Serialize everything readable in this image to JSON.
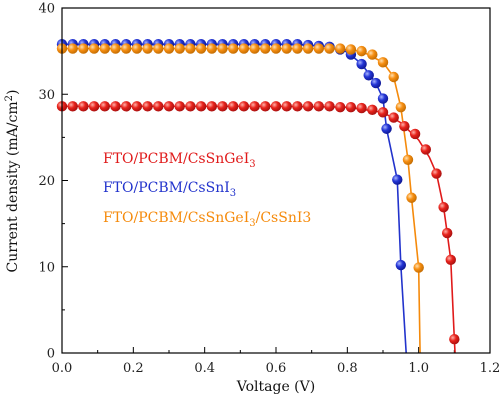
{
  "chart_data": {
    "type": "line",
    "xlabel": "Voltage (V)",
    "ylabel_main": "Current density (mA/cm",
    "ylabel_sup": "2",
    "ylabel_tail": ")",
    "xlim": [
      0.0,
      1.2
    ],
    "ylim": [
      0,
      40
    ],
    "xticks": [
      "0.0",
      "0.2",
      "0.4",
      "0.6",
      "0.8",
      "1.0",
      "1.2"
    ],
    "yticks": [
      "0",
      "10",
      "20",
      "30",
      "40"
    ],
    "grid": false,
    "legend_position": "center-left",
    "series": [
      {
        "name_main": "FTO/PCBM/CsSnGeI",
        "name_sub": "3",
        "name_tail": "",
        "color": "#e01a1a",
        "points": [
          [
            0.0,
            28.6
          ],
          [
            0.03,
            28.6
          ],
          [
            0.06,
            28.6
          ],
          [
            0.09,
            28.6
          ],
          [
            0.12,
            28.6
          ],
          [
            0.15,
            28.6
          ],
          [
            0.18,
            28.6
          ],
          [
            0.21,
            28.6
          ],
          [
            0.24,
            28.6
          ],
          [
            0.27,
            28.6
          ],
          [
            0.3,
            28.6
          ],
          [
            0.33,
            28.6
          ],
          [
            0.36,
            28.6
          ],
          [
            0.39,
            28.6
          ],
          [
            0.42,
            28.6
          ],
          [
            0.45,
            28.6
          ],
          [
            0.48,
            28.6
          ],
          [
            0.51,
            28.6
          ],
          [
            0.54,
            28.6
          ],
          [
            0.57,
            28.6
          ],
          [
            0.6,
            28.6
          ],
          [
            0.63,
            28.6
          ],
          [
            0.66,
            28.6
          ],
          [
            0.69,
            28.6
          ],
          [
            0.72,
            28.6
          ],
          [
            0.75,
            28.6
          ],
          [
            0.78,
            28.5
          ],
          [
            0.81,
            28.5
          ],
          [
            0.84,
            28.4
          ],
          [
            0.87,
            28.2
          ],
          [
            0.9,
            27.9
          ],
          [
            0.93,
            27.3
          ],
          [
            0.96,
            26.3
          ],
          [
            0.99,
            25.4
          ],
          [
            1.02,
            23.6
          ],
          [
            1.05,
            20.8
          ],
          [
            1.07,
            16.9
          ],
          [
            1.08,
            13.9
          ],
          [
            1.09,
            10.8
          ],
          [
            1.1,
            1.6
          ]
        ],
        "curve": [
          [
            0.0,
            28.6
          ],
          [
            0.6,
            28.6
          ],
          [
            0.8,
            28.5
          ],
          [
            0.9,
            27.9
          ],
          [
            0.95,
            26.7
          ],
          [
            1.0,
            24.7
          ],
          [
            1.03,
            22.7
          ],
          [
            1.05,
            20.8
          ],
          [
            1.07,
            16.9
          ],
          [
            1.08,
            13.9
          ],
          [
            1.09,
            10.8
          ],
          [
            1.1,
            1.6
          ],
          [
            1.102,
            0
          ]
        ]
      },
      {
        "name_main": "FTO/PCBM/CsSnI",
        "name_sub": "3",
        "name_tail": "",
        "color": "#2233cc",
        "points": [
          [
            0.0,
            35.8
          ],
          [
            0.03,
            35.8
          ],
          [
            0.06,
            35.8
          ],
          [
            0.09,
            35.8
          ],
          [
            0.12,
            35.8
          ],
          [
            0.15,
            35.8
          ],
          [
            0.18,
            35.8
          ],
          [
            0.21,
            35.8
          ],
          [
            0.24,
            35.8
          ],
          [
            0.27,
            35.8
          ],
          [
            0.3,
            35.8
          ],
          [
            0.33,
            35.8
          ],
          [
            0.36,
            35.8
          ],
          [
            0.39,
            35.8
          ],
          [
            0.42,
            35.8
          ],
          [
            0.45,
            35.8
          ],
          [
            0.48,
            35.8
          ],
          [
            0.51,
            35.8
          ],
          [
            0.54,
            35.8
          ],
          [
            0.57,
            35.8
          ],
          [
            0.6,
            35.8
          ],
          [
            0.63,
            35.8
          ],
          [
            0.66,
            35.8
          ],
          [
            0.69,
            35.7
          ],
          [
            0.72,
            35.6
          ],
          [
            0.75,
            35.5
          ],
          [
            0.78,
            35.2
          ],
          [
            0.81,
            34.6
          ],
          [
            0.84,
            33.5
          ],
          [
            0.86,
            32.2
          ],
          [
            0.88,
            31.3
          ],
          [
            0.9,
            29.5
          ],
          [
            0.91,
            26.0
          ],
          [
            0.94,
            20.1
          ],
          [
            0.95,
            10.2
          ]
        ],
        "curve": [
          [
            0.0,
            35.8
          ],
          [
            0.65,
            35.8
          ],
          [
            0.75,
            35.5
          ],
          [
            0.8,
            34.9
          ],
          [
            0.84,
            33.5
          ],
          [
            0.88,
            31.3
          ],
          [
            0.9,
            29.5
          ],
          [
            0.91,
            26.0
          ],
          [
            0.94,
            20.1
          ],
          [
            0.95,
            10.2
          ],
          [
            0.965,
            0
          ]
        ]
      },
      {
        "name_main": "FTO/PCBM/CsSnGeI",
        "name_sub": "3",
        "name_tail": "/CsSnI3",
        "color": "#f58a0b",
        "points": [
          [
            0.0,
            35.3
          ],
          [
            0.03,
            35.3
          ],
          [
            0.06,
            35.3
          ],
          [
            0.09,
            35.3
          ],
          [
            0.12,
            35.3
          ],
          [
            0.15,
            35.3
          ],
          [
            0.18,
            35.3
          ],
          [
            0.21,
            35.3
          ],
          [
            0.24,
            35.3
          ],
          [
            0.27,
            35.3
          ],
          [
            0.3,
            35.3
          ],
          [
            0.33,
            35.3
          ],
          [
            0.36,
            35.3
          ],
          [
            0.39,
            35.3
          ],
          [
            0.42,
            35.3
          ],
          [
            0.45,
            35.3
          ],
          [
            0.48,
            35.3
          ],
          [
            0.51,
            35.3
          ],
          [
            0.54,
            35.3
          ],
          [
            0.57,
            35.3
          ],
          [
            0.6,
            35.3
          ],
          [
            0.63,
            35.3
          ],
          [
            0.66,
            35.3
          ],
          [
            0.69,
            35.3
          ],
          [
            0.72,
            35.3
          ],
          [
            0.75,
            35.3
          ],
          [
            0.78,
            35.3
          ],
          [
            0.81,
            35.2
          ],
          [
            0.84,
            35.0
          ],
          [
            0.87,
            34.6
          ],
          [
            0.9,
            33.7
          ],
          [
            0.93,
            32.0
          ],
          [
            0.95,
            28.5
          ],
          [
            0.97,
            22.4
          ],
          [
            0.98,
            18.0
          ],
          [
            1.0,
            9.9
          ]
        ],
        "curve": [
          [
            0.0,
            35.3
          ],
          [
            0.75,
            35.3
          ],
          [
            0.84,
            35.0
          ],
          [
            0.9,
            33.7
          ],
          [
            0.93,
            32.0
          ],
          [
            0.95,
            28.5
          ],
          [
            0.97,
            22.4
          ],
          [
            0.98,
            18.0
          ],
          [
            1.0,
            9.9
          ],
          [
            1.004,
            0
          ]
        ]
      }
    ]
  }
}
